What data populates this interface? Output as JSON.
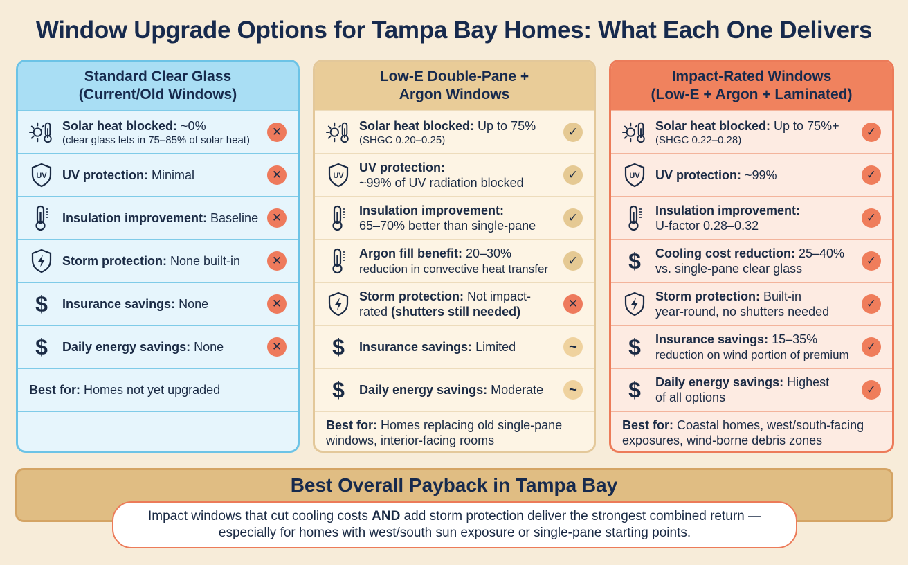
{
  "title": "Window Upgrade Options for Tampa Bay Homes: What Each One Delivers",
  "columns": [
    {
      "heading_line1": "Standard Clear Glass",
      "heading_line2": "(Current/Old Windows)",
      "rows": [
        {
          "icon": "sun-thermometer-icon",
          "label": "Solar heat blocked:",
          "value": " ~0%",
          "note": "(clear glass lets in 75–85% of solar heat)",
          "status": "cross"
        },
        {
          "icon": "uv-shield-icon",
          "label": "UV protection:",
          "value": " Minimal",
          "note": "",
          "status": "cross"
        },
        {
          "icon": "thermometer-icon",
          "label": "Insulation improvement:",
          "value": " Baseline",
          "note": "",
          "status": "cross"
        },
        {
          "icon": "storm-shield-icon",
          "label": "Storm protection:",
          "value": " None built-in",
          "note": "",
          "status": "cross"
        },
        {
          "icon": "dollar-icon",
          "label": "Insurance savings:",
          "value": " None",
          "note": "",
          "status": "cross"
        },
        {
          "icon": "dollar-icon",
          "label": "Daily energy savings:",
          "value": " None",
          "note": "",
          "status": "cross"
        }
      ],
      "best_label": "Best for:",
      "best_value": " Homes not yet upgraded"
    },
    {
      "heading_line1": "Low-E Double-Pane +",
      "heading_line2": "Argon Windows",
      "rows": [
        {
          "icon": "sun-thermometer-icon",
          "label": "Solar heat blocked:",
          "value": " Up to 75%",
          "note": "(SHGC 0.20–0.25)",
          "status": "check"
        },
        {
          "icon": "uv-shield-icon",
          "label": "UV protection:",
          "value": "~99% of UV radiation blocked",
          "note": "",
          "status": "check"
        },
        {
          "icon": "thermometer-icon",
          "label": "Insulation improvement:",
          "value": "65–70% better than single-pane",
          "note": "",
          "status": "check"
        },
        {
          "icon": "thermometer-icon",
          "label": "Argon fill benefit:",
          "value": " 20–30%",
          "value2": "reduction in convective heat transfer",
          "status": "check"
        },
        {
          "icon": "storm-shield-icon",
          "label": "Storm protection:",
          "value": " Not impact-",
          "value2": "rated ",
          "value3": "(shutters still needed)",
          "status": "cross"
        },
        {
          "icon": "dollar-icon",
          "label": "Insurance savings:",
          "value": " Limited",
          "note": "",
          "status": "tilde"
        },
        {
          "icon": "dollar-icon",
          "label": "Daily energy savings:",
          "value": " Moderate",
          "note": "",
          "status": "tilde"
        }
      ],
      "best_label": "Best for:",
      "best_value": " Homes replacing old single-pane windows, interior-facing rooms"
    },
    {
      "heading_line1": "Impact-Rated Windows",
      "heading_line2": "(Low-E + Argon + Laminated)",
      "rows": [
        {
          "icon": "sun-thermometer-icon",
          "label": "Solar heat blocked:",
          "value": " Up to 75%+",
          "note": "(SHGC 0.22–0.28)",
          "status": "check"
        },
        {
          "icon": "uv-shield-icon",
          "label": "UV protection:",
          "value": " ~99%",
          "note": "",
          "status": "check"
        },
        {
          "icon": "thermometer-icon",
          "label": "Insulation improvement:",
          "value": "U-factor 0.28–0.32",
          "note": "",
          "status": "check"
        },
        {
          "icon": "dollar-icon",
          "label": "Cooling cost reduction:",
          "value": " 25–40%",
          "value2": "vs. single-pane clear glass",
          "status": "check"
        },
        {
          "icon": "storm-shield-icon",
          "label": "Storm protection:",
          "value": " Built-in",
          "value2": "year-round, no shutters needed",
          "status": "check"
        },
        {
          "icon": "dollar-icon",
          "label": "Insurance savings:",
          "value": " 15–35%",
          "value2": "reduction on wind portion of premium",
          "status": "check"
        },
        {
          "icon": "dollar-icon",
          "label": "Daily energy savings:",
          "value": " Highest",
          "value2": "of all options",
          "status": "check"
        }
      ],
      "best_label": "Best for:",
      "best_value": " Coastal homes, west/south-facing exposures, wind-borne debris zones"
    }
  ],
  "status_symbols": {
    "cross": "✕",
    "check": "✓",
    "tilde": "~"
  },
  "bottom": {
    "title": "Best Overall Payback in Tampa Bay",
    "text_before": "Impact windows that cut cooling costs ",
    "text_emph": "AND",
    "text_after": " add storm protection deliver the strongest combined return — especially for homes with west/south sun exposure or single-pane starting points."
  },
  "colors": {
    "background": "#f7ecd9",
    "clear_glass": "#a9def4",
    "low_e": "#e9cc98",
    "impact": "#f0825e",
    "navy": "#172a4d"
  }
}
